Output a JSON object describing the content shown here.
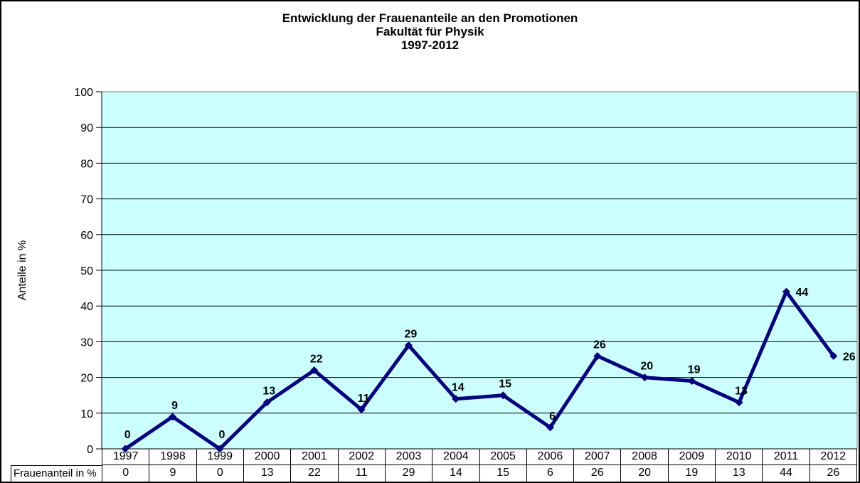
{
  "title": {
    "line1": "Entwicklung der Frauenanteile an den Promotionen",
    "line2": "Fakultät für Physik",
    "line3": "1997-2012"
  },
  "chart_data": {
    "type": "line",
    "title": "Entwicklung der Frauenanteile an den Promotionen Fakultät für Physik 1997-2012",
    "categories": [
      "1997",
      "1998",
      "1999",
      "2000",
      "2001",
      "2002",
      "2003",
      "2004",
      "2005",
      "2006",
      "2007",
      "2008",
      "2009",
      "2010",
      "2011",
      "2012"
    ],
    "series": [
      {
        "name": "Frauenanteil in %",
        "values": [
          0,
          9,
          0,
          13,
          22,
          11,
          29,
          14,
          15,
          6,
          26,
          20,
          19,
          13,
          44,
          26
        ]
      }
    ],
    "xlabel": "",
    "ylabel": "Anteile in %",
    "ylim": [
      0,
      100
    ],
    "yticks": [
      0,
      10,
      20,
      30,
      40,
      50,
      60,
      70,
      80,
      90,
      100
    ],
    "grid": true,
    "legend_position": "none",
    "data_labels": true,
    "label_positions": [
      "above",
      "above",
      "above",
      "above",
      "above",
      "above",
      "above",
      "above",
      "above",
      "above",
      "above",
      "above",
      "above",
      "above",
      "right",
      "right"
    ],
    "marker": "diamond",
    "colors": {
      "line": "#000080",
      "marker": "#000080",
      "plot_bg": "#CCFFFF",
      "grid": "#000000",
      "plot_border": "#808080",
      "axis": "#000000",
      "text": "#000000"
    }
  }
}
